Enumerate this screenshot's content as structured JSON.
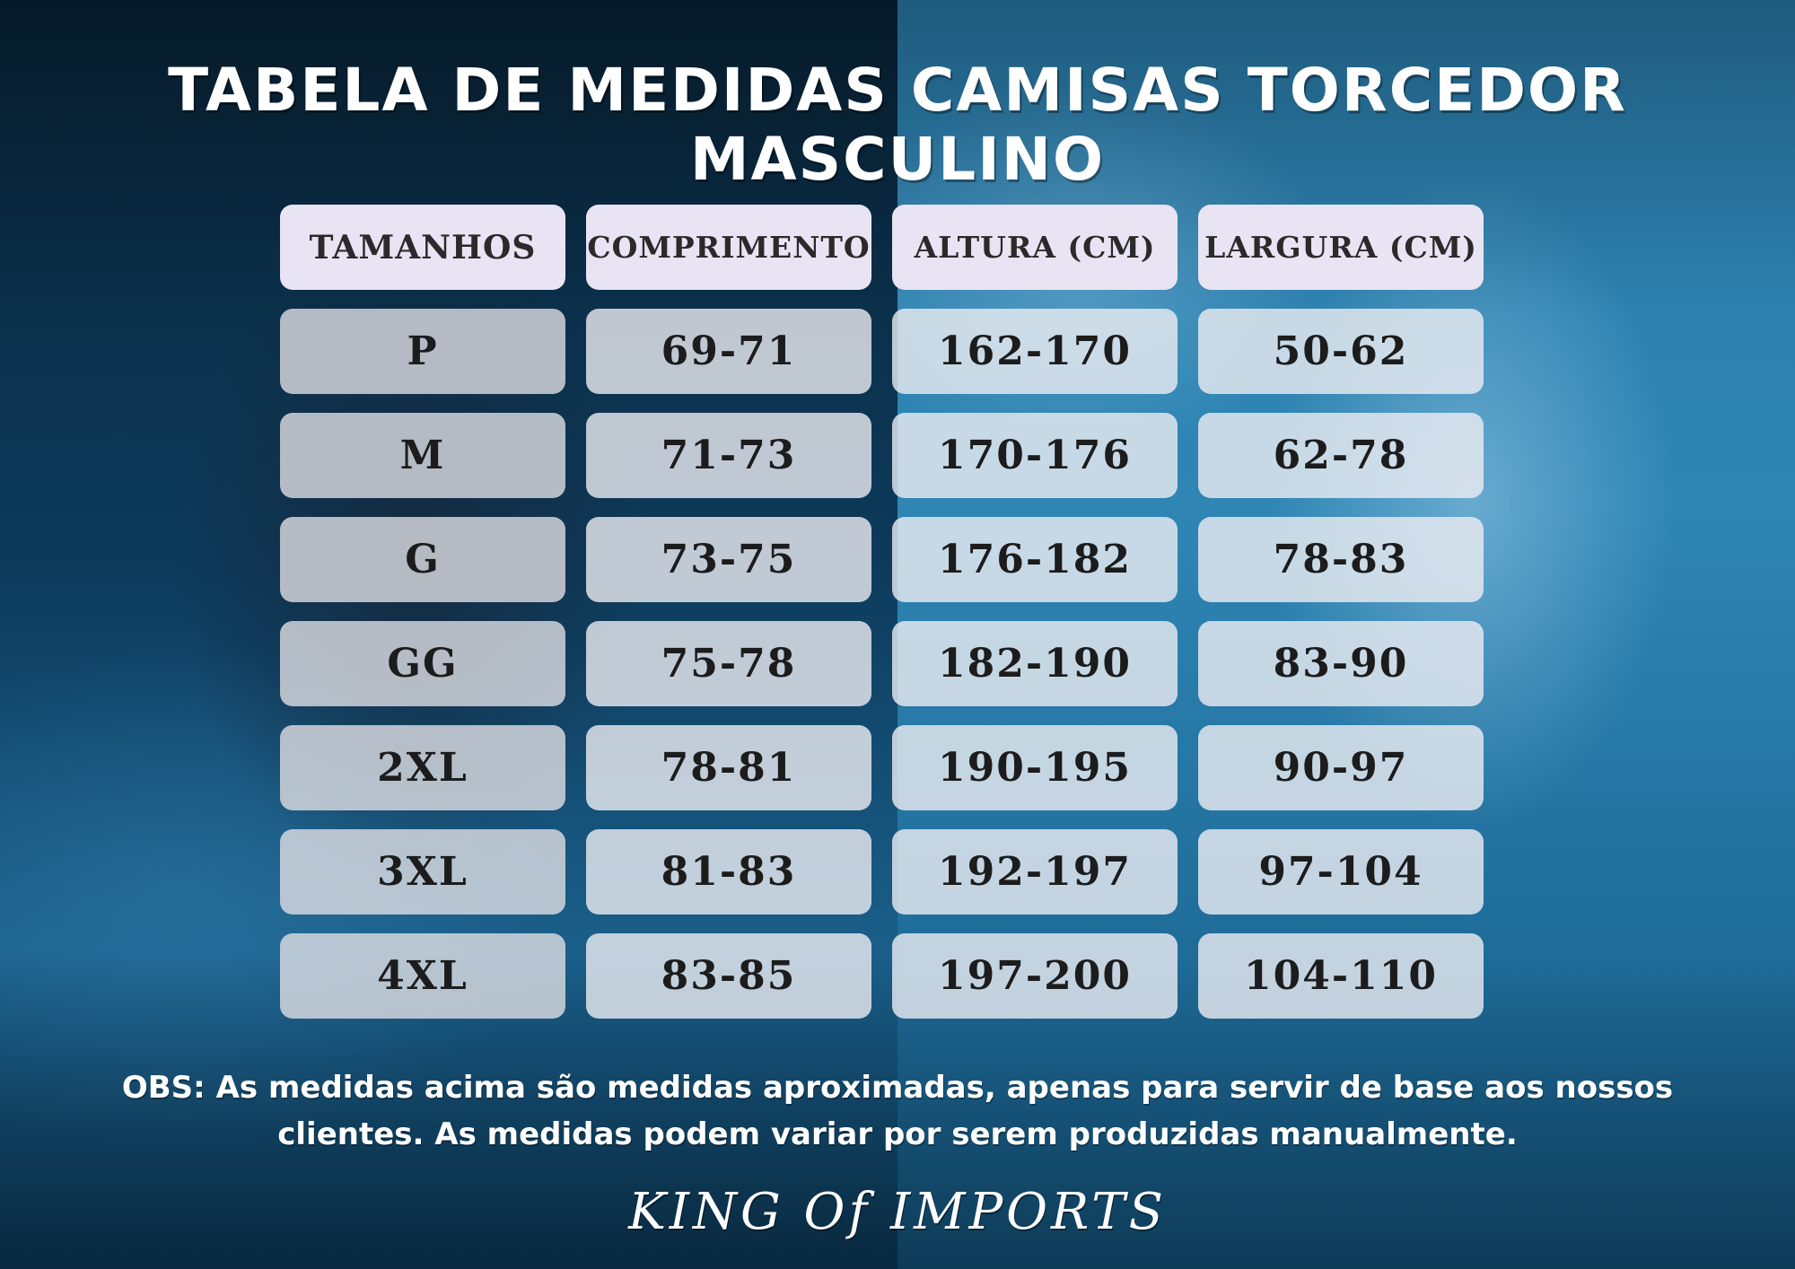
{
  "title": "TABELA DE MEDIDAS CAMISAS TORCEDOR MASCULINO",
  "table": {
    "headers": [
      "TAMANHOS",
      "COMPRIMENTO",
      "ALTURA (CM)",
      "LARGURA (CM)"
    ],
    "rows": [
      [
        "P",
        "69-71",
        "162-170",
        "50-62"
      ],
      [
        "M",
        "71-73",
        "170-176",
        "62-78"
      ],
      [
        "G",
        "73-75",
        "176-182",
        "78-83"
      ],
      [
        "GG",
        "75-78",
        "182-190",
        "83-90"
      ],
      [
        "2XL",
        "78-81",
        "190-195",
        "90-97"
      ],
      [
        "3XL",
        "81-83",
        "192-197",
        "97-104"
      ],
      [
        "4XL",
        "83-85",
        "197-200",
        "104-110"
      ]
    ]
  },
  "note": "OBS:  As medidas acima são medidas aproximadas, apenas para servir de base aos nossos clientes. As medidas podem variar por serem produzidas manualmente.",
  "brand": "KING Of IMPORTS",
  "colors": {
    "header_bg": "#e8e4f3",
    "cell_bg": "#eeeef2",
    "text_dark": "#1c1c1c",
    "background_left": "#0d3b5c",
    "background_right": "#2f86b5"
  }
}
